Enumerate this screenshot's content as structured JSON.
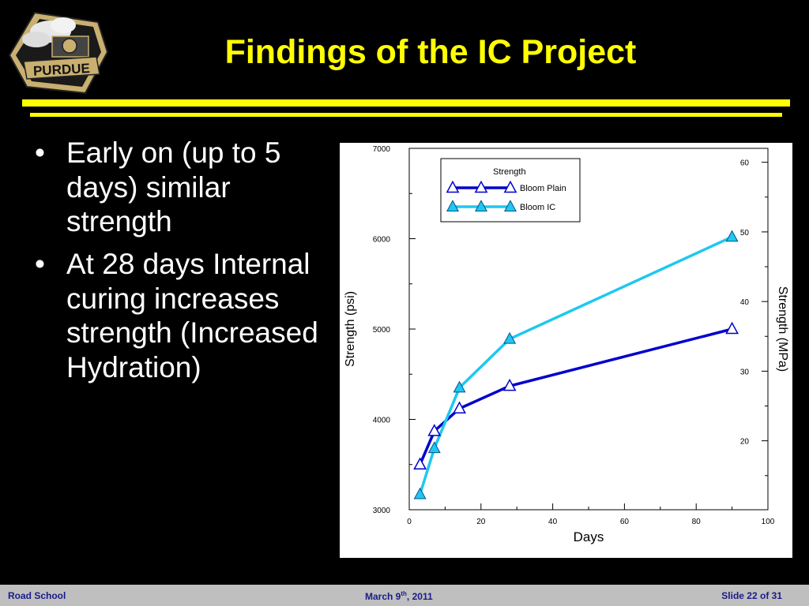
{
  "slide": {
    "title": "Findings of the IC Project",
    "bullet_symbol": "•",
    "bullets": [
      "Early on (up to 5 days) similar strength",
      "At 28 days Internal curing increases strength (Increased Hydration)"
    ],
    "logo": {
      "icon": "purdue-train-logo",
      "text": "PURDUE"
    },
    "colors": {
      "background": "#000000",
      "title": "#ffff00",
      "rules": "#ffff00",
      "text": "#ffffff",
      "footer_bg": "#bfbfbf",
      "footer_text": "#1a1a8a"
    }
  },
  "footer": {
    "left": "Road School",
    "center_prefix": "March 9",
    "center_sup": "th",
    "center_suffix": ", 2011",
    "right": "Slide 22 of 31"
  },
  "chart_data": {
    "type": "line",
    "xlabel": "Days",
    "ylabel": "Strength (psi)",
    "y2label": "Strength (MPa)",
    "legend_title": "Strength",
    "legend_position": "top-left",
    "xlim": [
      0,
      100
    ],
    "ylim": [
      3000,
      7000
    ],
    "y2lim": [
      10.1,
      62
    ],
    "xticks": [
      0,
      20,
      40,
      60,
      80,
      100
    ],
    "yticks": [
      3000,
      4000,
      5000,
      6000,
      7000
    ],
    "y2ticks": [
      20,
      30,
      40,
      50,
      60
    ],
    "grid": false,
    "series": [
      {
        "name": "Bloom Plain",
        "color": "#0000cc",
        "marker": "hollow-triangle",
        "x": [
          3,
          7,
          14,
          28,
          90
        ],
        "y": [
          3500,
          3870,
          4120,
          4370,
          5000
        ]
      },
      {
        "name": "Bloom IC",
        "color": "#1ec8f0",
        "marker": "filled-triangle",
        "x": [
          3,
          7,
          14,
          28,
          90
        ],
        "y": [
          3170,
          3680,
          4350,
          4890,
          6020
        ]
      }
    ]
  }
}
